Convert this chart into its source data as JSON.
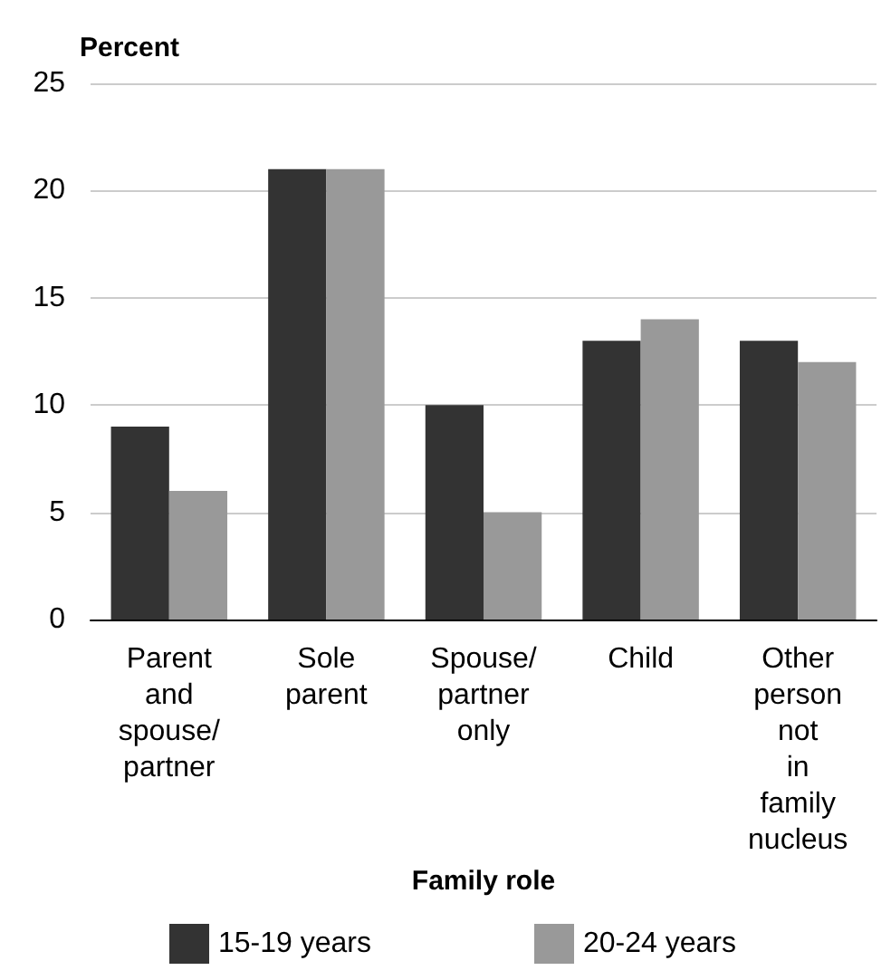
{
  "chart_data": {
    "type": "bar",
    "ylabel": "Percent",
    "xlabel": "Family role",
    "categories": [
      "Parent and spouse/ partner",
      "Sole parent",
      "Spouse/ partner only",
      "Child",
      "Other person not in family nucleus"
    ],
    "series": [
      {
        "name": "15-19 years",
        "color": "#333333",
        "values": [
          9,
          21,
          10,
          13,
          13
        ]
      },
      {
        "name": "20-24 years",
        "color": "#999999",
        "values": [
          6,
          21,
          5,
          14,
          12
        ]
      }
    ],
    "ylim": [
      0,
      25
    ],
    "yticks": [
      0,
      5,
      10,
      15,
      20,
      25
    ],
    "grid": "y",
    "legend": "bottom"
  }
}
